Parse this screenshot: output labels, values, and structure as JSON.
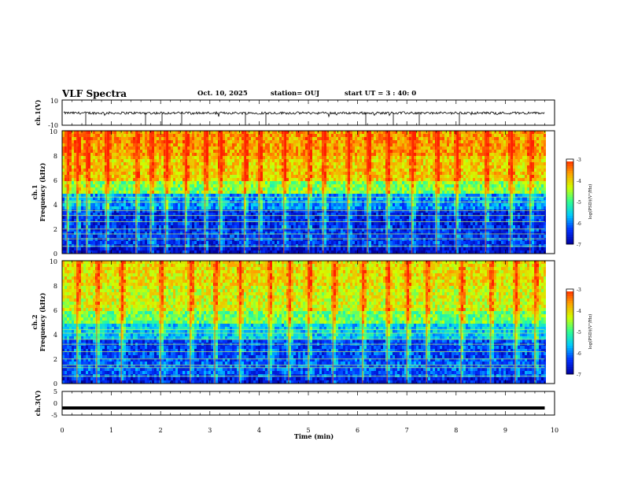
{
  "header": {
    "title": "VLF Spectra",
    "date": "Oct. 10, 2025",
    "station": "station= OUJ",
    "start_ut": "start UT =  3 : 40: 0"
  },
  "chart_data": [
    {
      "type": "line",
      "ylabel": "ch.1(V)",
      "ylim": [
        -10,
        10
      ],
      "yticks": [
        "10",
        "-10"
      ],
      "baseline": -0.3,
      "noise_amplitude": 1,
      "spikes_to": -10,
      "color": "#000000"
    },
    {
      "type": "heatmap",
      "ylabel_lines": [
        "ch.1",
        "Frequency (kHz)"
      ],
      "ylim": [
        0,
        10
      ],
      "yticks": [
        "0",
        "2",
        "4",
        "6",
        "8",
        "10"
      ],
      "xlim": [
        0,
        10
      ],
      "colorbar": {
        "label": "log(PSD)(V²/Hz)",
        "range": [
          -7,
          -3
        ],
        "ticks": [
          "-3",
          "-4",
          "-5",
          "-6",
          "-7"
        ],
        "colors": [
          "#0000a0",
          "#0030ff",
          "#00c8ff",
          "#30ff90",
          "#d0ff00",
          "#ffa000",
          "#ff2000",
          "#ffffff"
        ]
      },
      "bands": [
        {
          "range": [
            0.0,
            0.5
          ],
          "level": -6.8
        },
        {
          "range": [
            0.5,
            2.0
          ],
          "level": -6.4
        },
        {
          "range": [
            2.0,
            3.6
          ],
          "level": -6.5
        },
        {
          "range": [
            3.6,
            4.8
          ],
          "level": -5.9
        },
        {
          "range": [
            4.8,
            6.0
          ],
          "level": -4.7
        },
        {
          "range": [
            6.0,
            8.0
          ],
          "level": -4.0
        },
        {
          "range": [
            8.0,
            10.0
          ],
          "level": -3.7
        }
      ],
      "tones_khz": [
        0.6,
        1.2,
        1.6,
        2.0,
        2.6,
        3.1,
        3.5,
        4.2,
        4.6
      ],
      "bursts_min": [
        0.1,
        0.3,
        0.5,
        0.9,
        1.5,
        1.8,
        2.1,
        2.5,
        2.9,
        3.2,
        3.7,
        4.0,
        4.5,
        5.0,
        5.3,
        5.8,
        6.2,
        6.6,
        7.1,
        7.6,
        8.0,
        8.6,
        9.1,
        9.5
      ]
    },
    {
      "type": "heatmap",
      "ylabel_lines": [
        "ch.2",
        "Frequency (kHz)"
      ],
      "ylim": [
        0,
        10
      ],
      "yticks": [
        "0",
        "2",
        "4",
        "6",
        "8",
        "10"
      ],
      "xlim": [
        0,
        10
      ],
      "colorbar": {
        "label": "log(PSD)(V²/Hz)",
        "range": [
          -7,
          -3
        ],
        "ticks": [
          "-3",
          "-4",
          "-5",
          "-6",
          "-7"
        ],
        "colors": [
          "#0000a0",
          "#0030ff",
          "#00c8ff",
          "#30ff90",
          "#d0ff00",
          "#ffa000",
          "#ff2000",
          "#ffffff"
        ]
      },
      "bands": [
        {
          "range": [
            0.0,
            0.5
          ],
          "level": -6.6
        },
        {
          "range": [
            0.5,
            2.0
          ],
          "level": -6.2
        },
        {
          "range": [
            2.0,
            3.6
          ],
          "level": -6.3
        },
        {
          "range": [
            3.6,
            4.8
          ],
          "level": -5.6
        },
        {
          "range": [
            4.8,
            6.0
          ],
          "level": -4.8
        },
        {
          "range": [
            6.0,
            8.0
          ],
          "level": -4.3
        },
        {
          "range": [
            8.0,
            10.0
          ],
          "level": -4.1
        }
      ],
      "tones_khz": [
        0.6,
        1.3,
        1.5,
        2.0,
        2.6,
        3.2,
        3.6,
        4.1,
        4.4
      ],
      "bursts_min": [
        0.3,
        0.7,
        1.2,
        2.0,
        2.6,
        3.1,
        3.6,
        4.2,
        4.6,
        5.0,
        5.5,
        6.1,
        6.6,
        7.0,
        7.4,
        8.1,
        8.7,
        9.2,
        9.6
      ]
    },
    {
      "type": "line",
      "ylabel": "ch.3(V)",
      "ylim": [
        -5,
        5
      ],
      "yticks": [
        "5",
        "0",
        "-5"
      ],
      "value": -2,
      "color": "#000000"
    }
  ],
  "x_axis": {
    "label": "Time (min)",
    "range": [
      0,
      10
    ],
    "ticks": [
      "0",
      "1",
      "2",
      "3",
      "4",
      "5",
      "6",
      "7",
      "8",
      "9",
      "10"
    ],
    "data_end": 9.8
  }
}
